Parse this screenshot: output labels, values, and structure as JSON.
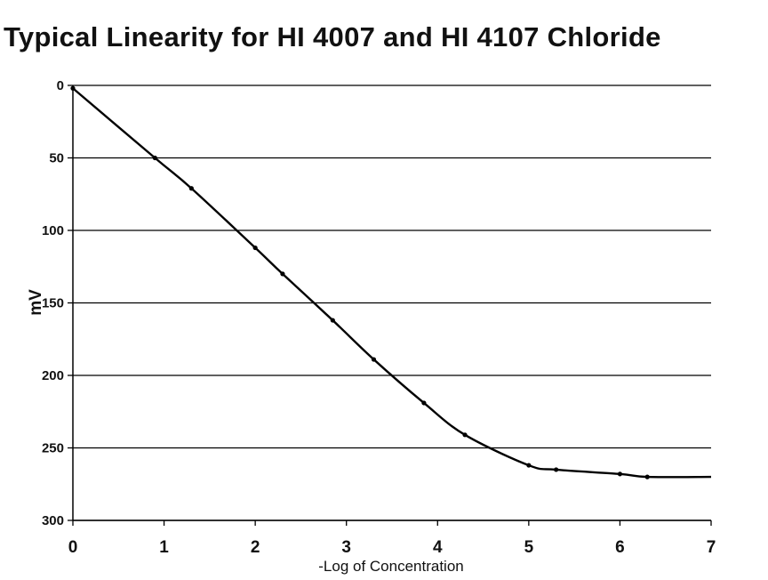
{
  "chart_data": {
    "type": "line",
    "title": "Typical Linearity for HI 4007 and HI 4107 Chloride",
    "xlabel": "-Log of Concentration",
    "ylabel": "mV",
    "xlim": [
      0,
      7
    ],
    "ylim": [
      0,
      300
    ],
    "y_inverted": true,
    "x_ticks": [
      0,
      1,
      2,
      3,
      4,
      5,
      6,
      7
    ],
    "y_ticks": [
      0,
      50,
      100,
      150,
      200,
      250,
      300
    ],
    "grid": "horizontal",
    "legend": "none",
    "line_color": "#000000",
    "series": [
      {
        "x": [
          0,
          0.9,
          1.3,
          2.0,
          2.3,
          2.85,
          3.3,
          3.85,
          4.3,
          5.0,
          5.3,
          6.0,
          6.3,
          7.0
        ],
        "values": [
          2,
          50,
          71,
          112,
          130,
          162,
          189,
          219,
          241,
          262,
          265,
          268,
          270,
          270
        ]
      }
    ]
  }
}
